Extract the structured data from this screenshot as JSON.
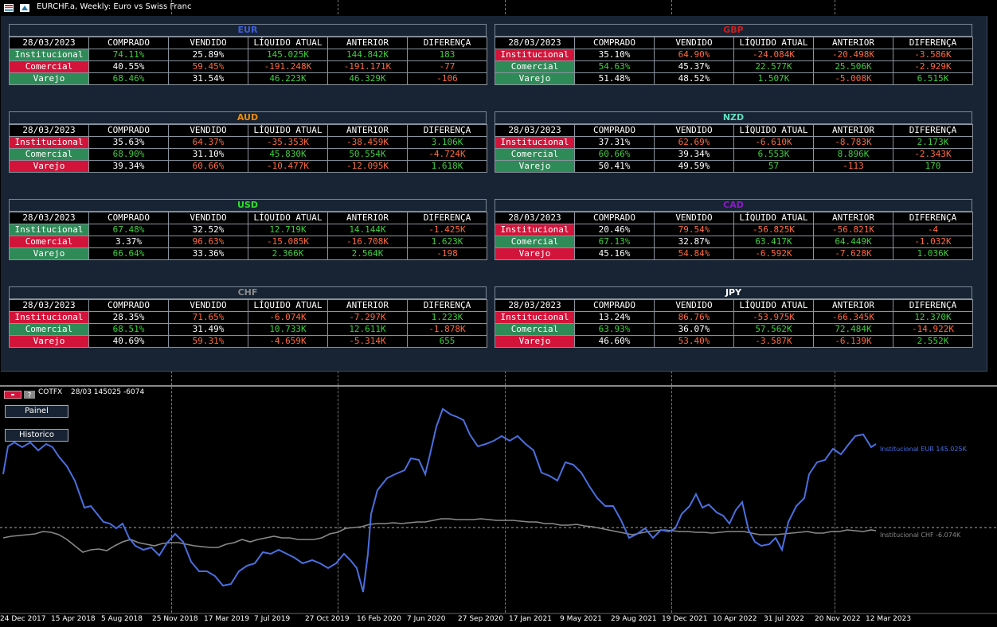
{
  "window": {
    "title": "EURCHF.a, Weekly:  Euro vs Swiss Franc"
  },
  "header_labels": [
    "COMPRADO",
    "VENDIDO",
    "LÍQUIDO ATUAL",
    "ANTERIOR",
    "DIFERENÇA"
  ],
  "tables": [
    {
      "currency": "EUR",
      "color": "#3f5fe0",
      "date": "28/03/2023",
      "rows": [
        {
          "label": "Institucional",
          "kind": "green",
          "vals": [
            "74.11%",
            "25.89%",
            "145.025K",
            "144.842K",
            "183"
          ],
          "signs": [
            "pos",
            "",
            "pos",
            "pos",
            "pos"
          ]
        },
        {
          "label": "Comercial",
          "kind": "red",
          "vals": [
            "40.55%",
            "59.45%",
            "-191.248K",
            "-191.171K",
            "-77"
          ],
          "signs": [
            "",
            "neg",
            "neg",
            "neg",
            "neg"
          ]
        },
        {
          "label": "Varejo",
          "kind": "green",
          "vals": [
            "68.46%",
            "31.54%",
            "46.223K",
            "46.329K",
            "-106"
          ],
          "signs": [
            "pos",
            "",
            "pos",
            "pos",
            "neg"
          ]
        }
      ]
    },
    {
      "currency": "GBP",
      "color": "#d61a1a",
      "date": "28/03/2023",
      "rows": [
        {
          "label": "Institucional",
          "kind": "red",
          "vals": [
            "35.10%",
            "64.90%",
            "-24.084K",
            "-20.498K",
            "-3.586K"
          ],
          "signs": [
            "",
            "neg",
            "neg",
            "neg",
            "neg"
          ]
        },
        {
          "label": "Comercial",
          "kind": "green",
          "vals": [
            "54.63%",
            "45.37%",
            "22.577K",
            "25.506K",
            "-2.929K"
          ],
          "signs": [
            "pos",
            "",
            "pos",
            "pos",
            "neg"
          ]
        },
        {
          "label": "Varejo",
          "kind": "green",
          "vals": [
            "51.48%",
            "48.52%",
            "1.507K",
            "-5.008K",
            "6.515K"
          ],
          "signs": [
            "",
            "",
            "pos",
            "neg",
            "pos"
          ]
        }
      ]
    },
    {
      "currency": "AUD",
      "color": "#f08c00",
      "date": "28/03/2023",
      "rows": [
        {
          "label": "Institucional",
          "kind": "red",
          "vals": [
            "35.63%",
            "64.37%",
            "-35.353K",
            "-38.459K",
            "3.106K"
          ],
          "signs": [
            "",
            "neg",
            "neg",
            "neg",
            "pos"
          ]
        },
        {
          "label": "Comercial",
          "kind": "green",
          "vals": [
            "68.90%",
            "31.10%",
            "45.830K",
            "50.554K",
            "-4.724K"
          ],
          "signs": [
            "pos",
            "",
            "pos",
            "pos",
            "neg"
          ]
        },
        {
          "label": "Varejo",
          "kind": "red",
          "vals": [
            "39.34%",
            "60.66%",
            "-10.477K",
            "-12.095K",
            "1.618K"
          ],
          "signs": [
            "",
            "neg",
            "neg",
            "neg",
            "pos"
          ]
        }
      ]
    },
    {
      "currency": "NZD",
      "color": "#5fe0c0",
      "date": "28/03/2023",
      "rows": [
        {
          "label": "Institucional",
          "kind": "red",
          "vals": [
            "37.31%",
            "62.69%",
            "-6.610K",
            "-8.783K",
            "2.173K"
          ],
          "signs": [
            "",
            "neg",
            "neg",
            "neg",
            "pos"
          ]
        },
        {
          "label": "Comercial",
          "kind": "green",
          "vals": [
            "60.66%",
            "39.34%",
            "6.553K",
            "8.896K",
            "-2.343K"
          ],
          "signs": [
            "pos",
            "",
            "pos",
            "pos",
            "neg"
          ]
        },
        {
          "label": "Varejo",
          "kind": "green",
          "vals": [
            "50.41%",
            "49.59%",
            "57",
            "-113",
            "170"
          ],
          "signs": [
            "",
            "",
            "pos",
            "neg",
            "pos"
          ]
        }
      ]
    },
    {
      "currency": "USD",
      "color": "#2ee02e",
      "date": "28/03/2023",
      "rows": [
        {
          "label": "Institucional",
          "kind": "green",
          "vals": [
            "67.48%",
            "32.52%",
            "12.719K",
            "14.144K",
            "-1.425K"
          ],
          "signs": [
            "pos",
            "",
            "pos",
            "pos",
            "neg"
          ]
        },
        {
          "label": "Comercial",
          "kind": "red",
          "vals": [
            "3.37%",
            "96.63%",
            "-15.085K",
            "-16.708K",
            "1.623K"
          ],
          "signs": [
            "",
            "neg",
            "neg",
            "neg",
            "pos"
          ]
        },
        {
          "label": "Varejo",
          "kind": "green",
          "vals": [
            "66.64%",
            "33.36%",
            "2.366K",
            "2.564K",
            "-198"
          ],
          "signs": [
            "pos",
            "",
            "pos",
            "pos",
            "neg"
          ]
        }
      ]
    },
    {
      "currency": "CAD",
      "color": "#8a1cc8",
      "date": "28/03/2023",
      "rows": [
        {
          "label": "Institucional",
          "kind": "red",
          "vals": [
            "20.46%",
            "79.54%",
            "-56.825K",
            "-56.821K",
            "-4"
          ],
          "signs": [
            "",
            "neg",
            "neg",
            "neg",
            "neg"
          ]
        },
        {
          "label": "Comercial",
          "kind": "green",
          "vals": [
            "67.13%",
            "32.87%",
            "63.417K",
            "64.449K",
            "-1.032K"
          ],
          "signs": [
            "pos",
            "",
            "pos",
            "pos",
            "neg"
          ]
        },
        {
          "label": "Varejo",
          "kind": "red",
          "vals": [
            "45.16%",
            "54.84%",
            "-6.592K",
            "-7.628K",
            "1.036K"
          ],
          "signs": [
            "",
            "neg",
            "neg",
            "neg",
            "pos"
          ]
        }
      ]
    },
    {
      "currency": "CHF",
      "color": "#8a8a8a",
      "date": "28/03/2023",
      "rows": [
        {
          "label": "Institucional",
          "kind": "red",
          "vals": [
            "28.35%",
            "71.65%",
            "-6.074K",
            "-7.297K",
            "1.223K"
          ],
          "signs": [
            "",
            "neg",
            "neg",
            "neg",
            "pos"
          ]
        },
        {
          "label": "Comercial",
          "kind": "green",
          "vals": [
            "68.51%",
            "31.49%",
            "10.733K",
            "12.611K",
            "-1.878K"
          ],
          "signs": [
            "pos",
            "",
            "pos",
            "pos",
            "neg"
          ]
        },
        {
          "label": "Varejo",
          "kind": "red",
          "vals": [
            "40.69%",
            "59.31%",
            "-4.659K",
            "-5.314K",
            "655"
          ],
          "signs": [
            "",
            "neg",
            "neg",
            "neg",
            "pos"
          ]
        }
      ]
    },
    {
      "currency": "JPY",
      "color": "#ffffff",
      "date": "28/03/2023",
      "rows": [
        {
          "label": "Institucional",
          "kind": "red",
          "vals": [
            "13.24%",
            "86.76%",
            "-53.975K",
            "-66.345K",
            "12.370K"
          ],
          "signs": [
            "",
            "neg",
            "neg",
            "neg",
            "pos"
          ]
        },
        {
          "label": "Comercial",
          "kind": "green",
          "vals": [
            "63.93%",
            "36.07%",
            "57.562K",
            "72.484K",
            "-14.922K"
          ],
          "signs": [
            "pos",
            "",
            "pos",
            "pos",
            "neg"
          ]
        },
        {
          "label": "Varejo",
          "kind": "red",
          "vals": [
            "46.60%",
            "53.40%",
            "-3.587K",
            "-6.139K",
            "2.552K"
          ],
          "signs": [
            "",
            "neg",
            "neg",
            "neg",
            "pos"
          ]
        }
      ]
    }
  ],
  "subwindow": {
    "label": "COTFX",
    "info": "28/03 145025 -6074"
  },
  "buttons": {
    "panel": "Painel",
    "history": "Historico"
  },
  "lines": {
    "eur": {
      "label": "Institucional EUR 145.025K",
      "color": "#4a6fe0"
    },
    "chf": {
      "label": "Institucional CHF -6.074K",
      "color": "#8a8a8a"
    }
  },
  "x_axis": [
    "24 Dec 2017",
    "15 Apr 2018",
    "5 Aug 2018",
    "25 Nov 2018",
    "17 Mar 2019",
    "7 Jul 2019",
    "27 Oct 2019",
    "16 Feb 2020",
    "7 Jun 2020",
    "27 Sep 2020",
    "17 Jan 2021",
    "9 May 2021",
    "29 Aug 2021",
    "19 Dec 2021",
    "10 Apr 2022",
    "31 Jul 2022",
    "20 Nov 2022",
    "12 Mar 2023"
  ]
}
